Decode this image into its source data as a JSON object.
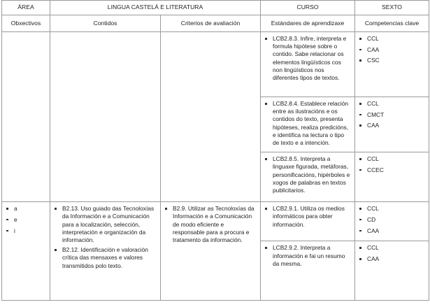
{
  "header": {
    "area_label": "ÁREA",
    "area_value": "LINGUA CASTELÁ E LITERATURA",
    "course_label": "CURSO",
    "course_value": "SEXTO"
  },
  "columns": [
    "Obxectivos",
    "Contidos",
    "Criterios de avaliación",
    "Estándares de aprendizaxe",
    "Competencias clave"
  ],
  "group1": {
    "standards": [
      {
        "text": "LCB2.8.3. Infire, interpreta e formula hipótese sobre o contido. Sabe relacionar os elementos lingüísticos cos non lingüísticos nos diferentes tipos de textos.",
        "competences": [
          "CCL",
          "CAA",
          "CSC"
        ]
      },
      {
        "text": "LCB2.8.4. Establece relación entre as ilustracións e os contidos do texto, presenta hipóteses, realiza predicións, e identifica na lectura o tipo de texto e a intención.",
        "competences": [
          "CCL",
          "CMCT",
          "CAA"
        ]
      },
      {
        "text": "LCB2.8.5. Interpreta a linguaxe figurada, metáforas, personificacións, hipérboles e xogos de palabras en textos publicitarios.",
        "competences": [
          "CCL",
          "CCEC"
        ]
      }
    ]
  },
  "group2": {
    "objectives": [
      "a",
      "e",
      "i"
    ],
    "contents": [
      "B2.13. Uso guiado das Tecnoloxías da Información e a Comunicación para a localización, selección, interpretación e organización da información.",
      "B2.12. Identificación e valoración crítica das mensaxes e valores transmitidos polo texto."
    ],
    "criteria": [
      "B2.9. Utilizar as Tecnoloxías da Información e a Comunicación de modo eficiente e responsable para a procura e tratamento da información."
    ],
    "standards": [
      {
        "text": "LCB2.9.1. Utiliza os medios informáticos para obter información.",
        "competences": [
          "CCL",
          "CD",
          "CAA"
        ]
      },
      {
        "text": "LCB2.9.2. Interpreta a información e fai un resumo da mesma.",
        "competences": [
          "CCL",
          "CAA"
        ]
      }
    ]
  }
}
